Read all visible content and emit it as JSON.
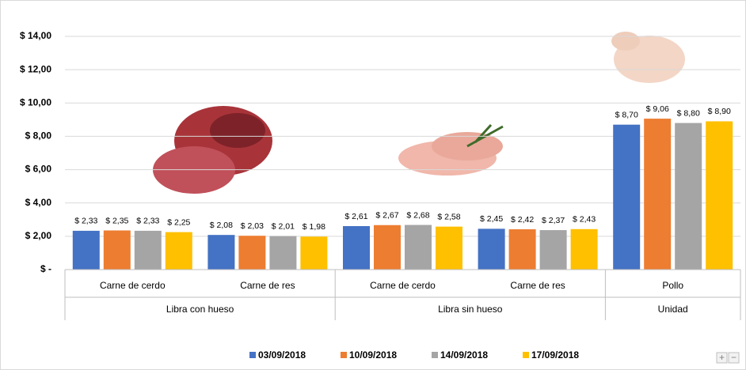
{
  "chart_data": {
    "type": "bar",
    "groups": [
      {
        "label": "Libra con hueso",
        "categories": [
          "Carne de cerdo",
          "Carne de res"
        ]
      },
      {
        "label": "Libra sin hueso",
        "categories": [
          "Carne de cerdo",
          "Carne de res"
        ]
      },
      {
        "label": "Unidad",
        "categories": [
          "Pollo"
        ]
      }
    ],
    "series": [
      {
        "name": "03/09/2018",
        "color": "#4472c4",
        "values": [
          2.33,
          2.08,
          2.61,
          2.45,
          8.7
        ],
        "value_labels": [
          "$ 2,33",
          "$ 2,08",
          "$ 2,61",
          "$ 2,45",
          "$ 8,70"
        ]
      },
      {
        "name": "10/09/2018",
        "color": "#ed7d31",
        "values": [
          2.35,
          2.03,
          2.67,
          2.42,
          9.06
        ],
        "value_labels": [
          "$ 2,35",
          "$ 2,03",
          "$ 2,67",
          "$ 2,42",
          "$ 9,06"
        ]
      },
      {
        "name": "14/09/2018",
        "color": "#a5a5a5",
        "values": [
          2.33,
          2.01,
          2.68,
          2.37,
          8.8
        ],
        "value_labels": [
          "$ 2,33",
          "$ 2,01",
          "$ 2,68",
          "$ 2,37",
          "$ 8,80"
        ]
      },
      {
        "name": "17/09/2018",
        "color": "#ffc000",
        "values": [
          2.25,
          1.98,
          2.58,
          2.43,
          8.9
        ],
        "value_labels": [
          "$ 2,25",
          "$ 1,98",
          "$ 2,58",
          "$ 2,43",
          "$ 8,90"
        ]
      }
    ],
    "ylim": [
      0,
      14
    ],
    "yticks": [
      {
        "value": 0,
        "label": "$ -"
      },
      {
        "value": 2,
        "label": "$ 2,00"
      },
      {
        "value": 4,
        "label": "$ 4,00"
      },
      {
        "value": 6,
        "label": "$ 6,00"
      },
      {
        "value": 8,
        "label": "$ 8,00"
      },
      {
        "value": 10,
        "label": "$ 10,00"
      },
      {
        "value": 12,
        "label": "$ 12,00"
      },
      {
        "value": 14,
        "label": "$ 14,00"
      }
    ],
    "grid": true,
    "legend": "bottom"
  },
  "zoom_controls": [
    "+",
    "−"
  ]
}
